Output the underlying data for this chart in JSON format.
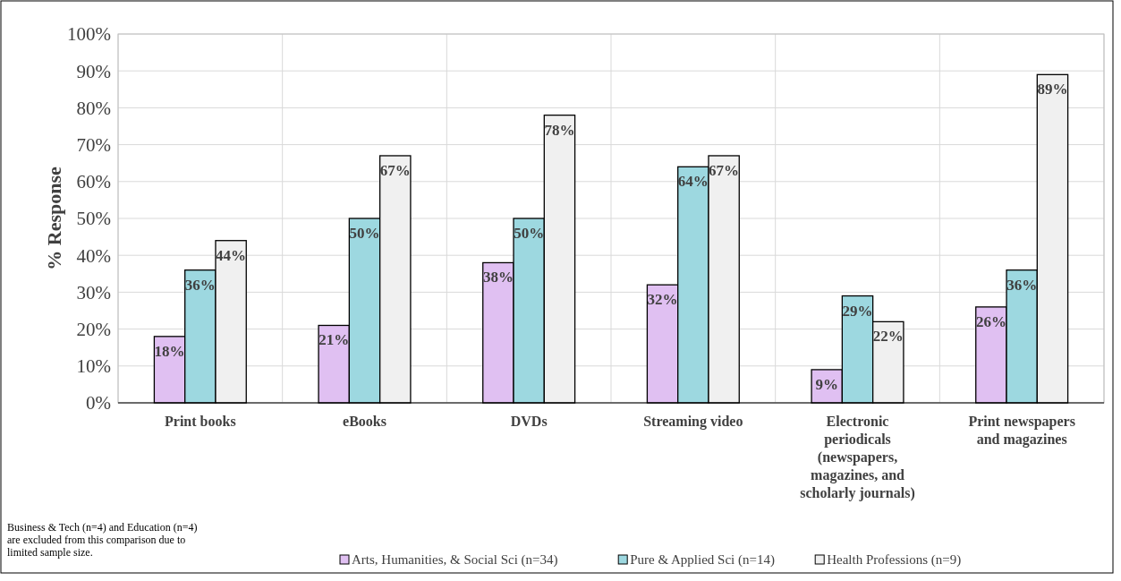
{
  "chart_data": {
    "type": "bar",
    "ylabel": "% Response",
    "categories": [
      "Print books",
      "eBooks",
      "DVDs",
      "Streaming video",
      "Electronic periodicals (newspapers, magazines, and scholarly journals)",
      "Print newspapers and magazines"
    ],
    "series": [
      {
        "name": "Arts, Humanities, & Social Sci (n=34)",
        "color": "#e0c0f2",
        "values": [
          18,
          21,
          38,
          32,
          9,
          26
        ],
        "value_labels": [
          "18%",
          "21%",
          "38%",
          "32%",
          "9%",
          "26%"
        ]
      },
      {
        "name": "Pure & Applied Sci (n=14)",
        "color": "#9dd8e0",
        "values": [
          36,
          50,
          50,
          64,
          29,
          36
        ],
        "value_labels": [
          "36%",
          "50%",
          "50%",
          "64%",
          "29%",
          "36%"
        ]
      },
      {
        "name": "Health Professions (n=9)",
        "color": "#f0f0f0",
        "values": [
          44,
          67,
          78,
          67,
          22,
          89
        ],
        "value_labels": [
          "44%",
          "67%",
          "78%",
          "67%",
          "22%",
          "89%"
        ]
      }
    ],
    "ylim": [
      0,
      100
    ],
    "yticks": [
      {
        "value": 0,
        "label": "0%"
      },
      {
        "value": 10,
        "label": "10%"
      },
      {
        "value": 20,
        "label": "20%"
      },
      {
        "value": 30,
        "label": "30%"
      },
      {
        "value": 40,
        "label": "40%"
      },
      {
        "value": 50,
        "label": "50%"
      },
      {
        "value": 60,
        "label": "60%"
      },
      {
        "value": 70,
        "label": "70%"
      },
      {
        "value": 80,
        "label": "80%"
      },
      {
        "value": 90,
        "label": "90%"
      },
      {
        "value": 100,
        "label": "100%"
      }
    ],
    "grid": true,
    "legend": "bottom",
    "annotations": [
      "Business & Tech (n=4) and Education (n=4) are excluded from this comparison due to limited sample size."
    ]
  }
}
